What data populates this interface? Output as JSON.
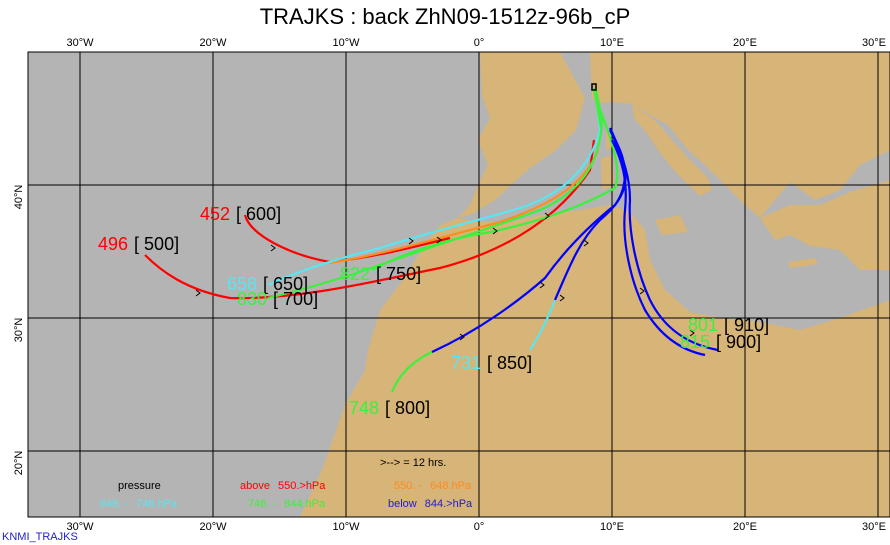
{
  "title": "TRAJKS : back ZhN09-1512z-96b_cP",
  "credit": "KNMI_TRAJKS",
  "colors": {
    "sea": "#b4b4b4",
    "land": "#d7b477",
    "above_550": "#ff0000",
    "p550_648": "#ff8c1e",
    "p648_746": "#5ae6f0",
    "p746_844": "#3cf03c",
    "below_844": "#0000ff"
  },
  "axes": {
    "lon_ticks": [
      "30°W",
      "20°W",
      "10°W",
      "0°",
      "10°E",
      "20°E",
      "30°E"
    ],
    "lat_ticks": [
      "20°N",
      "30°N",
      "40°N"
    ]
  },
  "legend": {
    "header": "pressure",
    "arrow_note": ">--> = 12 hrs.",
    "items": [
      {
        "a": "above",
        "b": "550.>hPa",
        "color": "#ff0000"
      },
      {
        "a": "550. -",
        "b": "648.hPa",
        "color": "#ff8c1e"
      },
      {
        "a": "648. -",
        "b": "746.hPa",
        "color": "#5ae6f0"
      },
      {
        "a": "746. -",
        "b": "844.hPa",
        "color": "#3cf03c"
      },
      {
        "a": "below",
        "b": "844.>hPa",
        "color": "#0000ff"
      }
    ]
  },
  "trajectories": [
    {
      "start_pressure": "496",
      "arrival_level": "[ 500]",
      "start_color": "#ff0000"
    },
    {
      "start_pressure": "452",
      "arrival_level": "[ 600]",
      "start_color": "#ff0000"
    },
    {
      "start_pressure": "658",
      "arrival_level": "[ 650]",
      "start_color": "#5ae6f0"
    },
    {
      "start_pressure": "830",
      "arrival_level": "[ 700]",
      "start_color": "#3cf03c"
    },
    {
      "start_pressure": "822",
      "arrival_level": "[ 750]",
      "start_color": "#3cf03c"
    },
    {
      "start_pressure": "748",
      "arrival_level": "[ 800]",
      "start_color": "#3cf03c"
    },
    {
      "start_pressure": "731",
      "arrival_level": "[ 850]",
      "start_color": "#5ae6f0"
    },
    {
      "start_pressure": "815",
      "arrival_level": "[ 900]",
      "start_color": "#3cf03c"
    },
    {
      "start_pressure": "801",
      "arrival_level": "[ 910]",
      "start_color": "#3cf03c"
    }
  ]
}
